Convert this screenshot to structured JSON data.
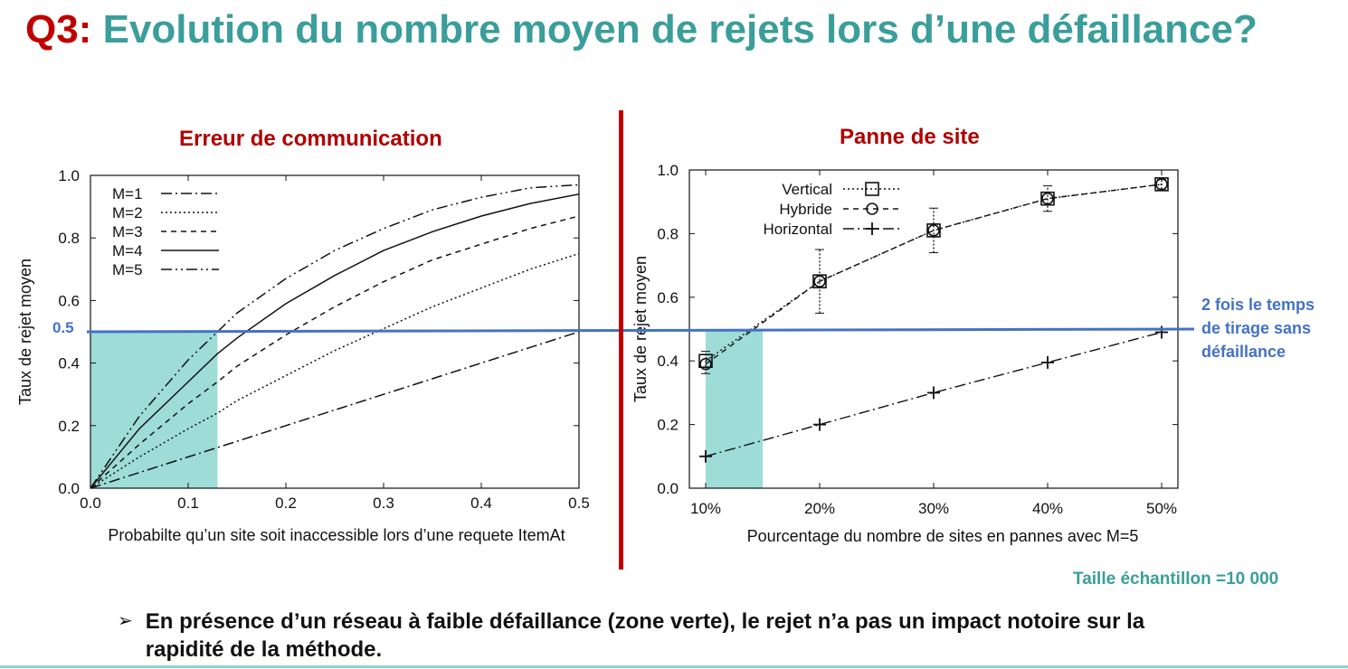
{
  "title": {
    "prefix": "Q3:",
    "text": "Evolution du nombre moyen de rejets lors d’une défaillance?"
  },
  "threshold": {
    "value": 0.5,
    "label": "0.5",
    "color": "#4472c4",
    "annotation_lines": [
      "2 fois le temps",
      "de tirage sans",
      "défaillance"
    ]
  },
  "shade_color": "#9edcd8",
  "sample_note": "Taille échantillon =10 000",
  "bullet": {
    "marker": "➢",
    "text": "En présence d’un réseau à faible défaillance (zone verte), le rejet n’a pas un impact notoire sur la rapidité de la  méthode."
  },
  "chart_data": [
    {
      "title": "Erreur de communication",
      "type": "line",
      "xlabel": "Probabilte qu’un site soit inaccessible lors d’une requete ItemAt",
      "ylabel": "Taux de rejet moyen",
      "xlim": [
        0,
        0.5
      ],
      "ylim": [
        0,
        1.0
      ],
      "xticks": [
        "0.0",
        "0.1",
        "0.2",
        "0.3",
        "0.4",
        "0.5"
      ],
      "yticks": [
        "0.0",
        "0.2",
        "0.4",
        "0.6",
        "0.8",
        "1.0"
      ],
      "legend_position": "top-left",
      "grid": false,
      "shaded_region": {
        "x": [
          0,
          0.13
        ],
        "y": [
          0,
          0.5
        ]
      },
      "x": [
        0,
        0.05,
        0.1,
        0.13,
        0.15,
        0.2,
        0.25,
        0.3,
        0.35,
        0.4,
        0.45,
        0.5
      ],
      "series": [
        {
          "name": "M=1",
          "dash": "dashdot",
          "values": [
            0,
            0.05,
            0.1,
            0.13,
            0.15,
            0.2,
            0.25,
            0.3,
            0.35,
            0.4,
            0.45,
            0.5
          ]
        },
        {
          "name": "M=2",
          "dash": "dotted",
          "values": [
            0,
            0.1,
            0.19,
            0.24,
            0.28,
            0.36,
            0.44,
            0.51,
            0.58,
            0.64,
            0.7,
            0.75
          ]
        },
        {
          "name": "M=3",
          "dash": "dashed",
          "values": [
            0,
            0.14,
            0.27,
            0.34,
            0.39,
            0.49,
            0.58,
            0.66,
            0.73,
            0.78,
            0.83,
            0.87
          ]
        },
        {
          "name": "M=4",
          "dash": "solid",
          "values": [
            0,
            0.19,
            0.34,
            0.43,
            0.48,
            0.59,
            0.68,
            0.76,
            0.82,
            0.87,
            0.91,
            0.94
          ]
        },
        {
          "name": "M=5",
          "dash": "dashdotdot",
          "values": [
            0,
            0.23,
            0.41,
            0.5,
            0.56,
            0.67,
            0.76,
            0.83,
            0.89,
            0.93,
            0.96,
            0.97
          ]
        }
      ]
    },
    {
      "title": "Panne de site",
      "type": "line",
      "xlabel": "Pourcentage du nombre de sites en pannes avec M=5",
      "ylabel": "Taux de rejet moyen",
      "categories": [
        "10%",
        "20%",
        "30%",
        "40%",
        "50%"
      ],
      "ylim": [
        0,
        1.0
      ],
      "yticks": [
        "0.0",
        "0.2",
        "0.4",
        "0.6",
        "0.8",
        "1.0"
      ],
      "legend_position": "top-left",
      "grid": false,
      "shaded_region": {
        "x": [
          "10%",
          "15%"
        ],
        "y": [
          0,
          0.5
        ]
      },
      "series": [
        {
          "name": "Vertical",
          "marker": "square",
          "dash": "dotted",
          "values": [
            0.4,
            0.65,
            0.81,
            0.91,
            0.955
          ],
          "err_low": [
            0.36,
            0.55,
            0.74,
            0.87,
            0.94
          ],
          "err_high": [
            0.43,
            0.75,
            0.88,
            0.95,
            0.97
          ]
        },
        {
          "name": "Hybride",
          "marker": "circle",
          "dash": "dashed",
          "values": [
            0.39,
            0.65,
            0.81,
            0.91,
            0.955
          ]
        },
        {
          "name": "Horizontal",
          "marker": "plus",
          "dash": "dashdot",
          "values": [
            0.1,
            0.2,
            0.3,
            0.395,
            0.49
          ]
        }
      ]
    }
  ]
}
